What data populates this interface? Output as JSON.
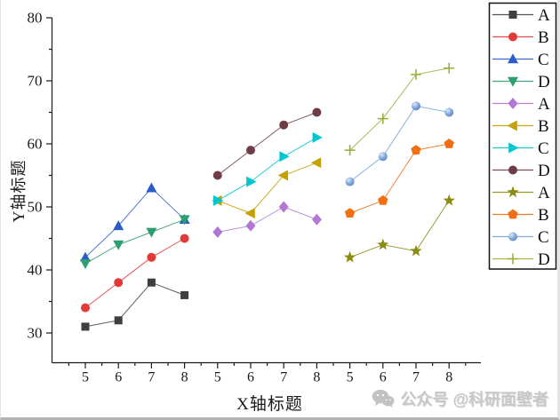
{
  "watermark": {
    "icon": "wechat-icon",
    "text": "公众号 @科研面壁者",
    "color": "#c0c0c0"
  },
  "chart_data": {
    "type": "line",
    "title": "",
    "xlabel": "X轴标题",
    "ylabel": "Y轴标题",
    "ylim": [
      25,
      80
    ],
    "y_major_ticks": [
      30,
      40,
      50,
      60,
      70,
      80
    ],
    "x_tick_labels": [
      "5",
      "6",
      "7",
      "8",
      "5",
      "6",
      "7",
      "8",
      "5",
      "6",
      "7",
      "8"
    ],
    "grid": false,
    "legend_position": "outside-right-top",
    "axis_color": "#1a1a1a",
    "series": [
      {
        "name": "A",
        "group": 0,
        "marker": "square",
        "color": "#3f3f3f",
        "x": [
          5,
          6,
          7,
          8
        ],
        "values": [
          31,
          32,
          38,
          36
        ]
      },
      {
        "name": "B",
        "group": 0,
        "marker": "circle",
        "color": "#e23a36",
        "x": [
          5,
          6,
          7,
          8
        ],
        "values": [
          34,
          38,
          42,
          45
        ]
      },
      {
        "name": "C",
        "group": 0,
        "marker": "triangle-up",
        "color": "#2a5bc6",
        "x": [
          5,
          6,
          7,
          8
        ],
        "values": [
          42,
          47,
          53,
          48
        ]
      },
      {
        "name": "D",
        "group": 0,
        "marker": "triangle-down",
        "color": "#2f9e6e",
        "x": [
          5,
          6,
          7,
          8
        ],
        "values": [
          41,
          44,
          46,
          48
        ]
      },
      {
        "name": "A",
        "group": 1,
        "marker": "diamond",
        "color": "#b077d4",
        "x": [
          5,
          6,
          7,
          8
        ],
        "values": [
          46,
          47,
          50,
          48
        ]
      },
      {
        "name": "B",
        "group": 1,
        "marker": "triangle-left",
        "color": "#c4a000",
        "x": [
          5,
          6,
          7,
          8
        ],
        "values": [
          51,
          49,
          55,
          57
        ]
      },
      {
        "name": "C",
        "group": 1,
        "marker": "triangle-right",
        "color": "#00c6ce",
        "x": [
          5,
          6,
          7,
          8
        ],
        "values": [
          51,
          54,
          58,
          61
        ]
      },
      {
        "name": "D",
        "group": 1,
        "marker": "circle",
        "color": "#6f3d46",
        "x": [
          5,
          6,
          7,
          8
        ],
        "values": [
          55,
          59,
          63,
          65
        ]
      },
      {
        "name": "A",
        "group": 2,
        "marker": "star",
        "color": "#8b8b10",
        "x": [
          5,
          6,
          7,
          8
        ],
        "values": [
          42,
          44,
          43,
          51
        ]
      },
      {
        "name": "B",
        "group": 2,
        "marker": "pentagon",
        "color": "#f37012",
        "x": [
          5,
          6,
          7,
          8
        ],
        "values": [
          49,
          51,
          59,
          60
        ]
      },
      {
        "name": "C",
        "group": 2,
        "marker": "sphere",
        "color": "#75a2da",
        "x": [
          5,
          6,
          7,
          8
        ],
        "values": [
          54,
          58,
          66,
          65
        ]
      },
      {
        "name": "D",
        "group": 2,
        "marker": "plus",
        "color": "#9cab37",
        "x": [
          5,
          6,
          7,
          8
        ],
        "values": [
          59,
          64,
          71,
          72
        ]
      }
    ]
  }
}
